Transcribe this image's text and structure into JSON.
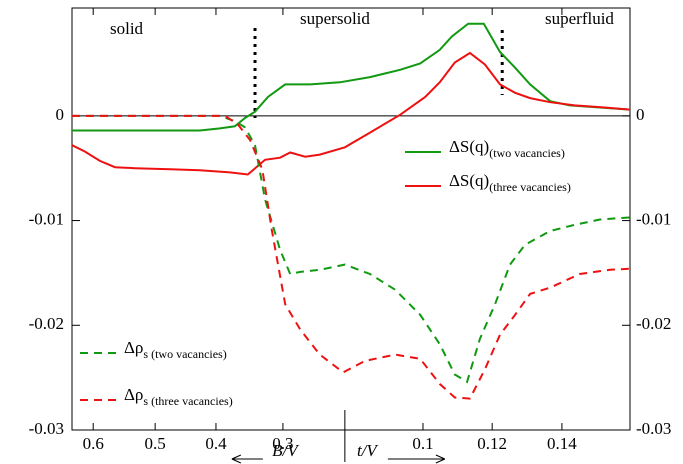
{
  "chart_data": {
    "type": "line",
    "xlim": [
      0,
      100
    ],
    "xticks": [
      {
        "value": 3.8,
        "label": "0.6"
      },
      {
        "value": 14.9,
        "label": "0.5"
      },
      {
        "value": 25.8,
        "label": "0.4"
      },
      {
        "value": 37.8,
        "label": "0.3"
      },
      {
        "value": 62.9,
        "label": "0.1"
      },
      {
        "value": 75.3,
        "label": "0.12"
      },
      {
        "value": 87.8,
        "label": "0.14"
      }
    ],
    "ylim": [
      -0.03,
      0.0103
    ],
    "yticks": [
      -0.03,
      -0.02,
      -0.01,
      0
    ],
    "x_label_left": "B/V",
    "x_label_right": "t/V",
    "x_divider": 48.9,
    "regions": [
      "solid",
      "supersolid",
      "superfluid"
    ],
    "phase_boundaries": [
      32.8,
      77.1
    ],
    "series": [
      {
        "name": "ΔS(q)",
        "name_sub": "(two vacancies)",
        "color": "#119911",
        "dash": false,
        "x": [
          0,
          5.0,
          14.0,
          22.9,
          26.5,
          29.2,
          31.0,
          32.8,
          35.1,
          38.2,
          42.7,
          48.0,
          53.4,
          58.8,
          62.4,
          65.9,
          68.1,
          71.0,
          73.8,
          76.7,
          79.4,
          82.1,
          85.7,
          89.2,
          94.6,
          100
        ],
        "values": [
          -0.0014,
          -0.0014,
          -0.0014,
          -0.0014,
          -0.0012,
          -0.001,
          -0.0002,
          0.0004,
          0.0018,
          0.003,
          0.003,
          0.0032,
          0.0037,
          0.0044,
          0.005,
          0.0063,
          0.0076,
          0.0088,
          0.0088,
          0.0061,
          0.0046,
          0.003,
          0.0014,
          0.001,
          0.0008,
          0.0006
        ]
      },
      {
        "name": "ΔS(q)",
        "name_sub": "(three vacancies)",
        "color": "#ee1111",
        "dash": false,
        "x": [
          0,
          2.3,
          5.0,
          7.7,
          11.3,
          17.6,
          22.9,
          28.3,
          31.5,
          34.6,
          37.3,
          39.1,
          41.8,
          44.4,
          48.9,
          53.4,
          58.8,
          63.3,
          65.9,
          68.6,
          71.3,
          74.0,
          76.7,
          79.4,
          82.1,
          85.7,
          90.1,
          95.5,
          100
        ],
        "values": [
          -0.0028,
          -0.0034,
          -0.0043,
          -0.0049,
          -0.005,
          -0.0051,
          -0.0052,
          -0.0054,
          -0.0056,
          -0.0042,
          -0.004,
          -0.0035,
          -0.0039,
          -0.0037,
          -0.003,
          -0.0016,
          0.0001,
          0.0018,
          0.0032,
          0.0051,
          0.006,
          0.0049,
          0.003,
          0.0022,
          0.0017,
          0.0013,
          0.001,
          0.0008,
          0.0006
        ]
      },
      {
        "name": "Δρ",
        "name_sub": "s (two vacancies)",
        "color": "#119911",
        "dash": true,
        "x": [
          0,
          14.0,
          26.5,
          29.2,
          31.0,
          32.8,
          34.6,
          37.3,
          39.1,
          40.9,
          44.4,
          48.9,
          53.4,
          57.9,
          62.4,
          65.9,
          68.6,
          70.8,
          73.1,
          75.8,
          78.5,
          81.2,
          85.7,
          90.1,
          94.6,
          100
        ],
        "values": [
          0,
          0,
          0,
          -0.0005,
          -0.0011,
          -0.0028,
          -0.008,
          -0.0128,
          -0.0151,
          -0.0149,
          -0.0147,
          -0.0142,
          -0.0151,
          -0.0166,
          -0.019,
          -0.0218,
          -0.0247,
          -0.0254,
          -0.0213,
          -0.018,
          -0.0142,
          -0.0123,
          -0.011,
          -0.0104,
          -0.0099,
          -0.0097
        ]
      },
      {
        "name": "Δρ",
        "name_sub": "s (three vacancies)",
        "color": "#ee1111",
        "dash": true,
        "x": [
          0,
          14.0,
          27.4,
          29.7,
          31.9,
          34.1,
          35.8,
          38.2,
          40.9,
          44.4,
          48.6,
          52.5,
          57.9,
          62.4,
          65.9,
          68.6,
          71.3,
          74.0,
          76.7,
          79.4,
          82.1,
          85.7,
          91.0,
          96.4,
          100
        ],
        "values": [
          0,
          0,
          0,
          -0.0008,
          -0.0023,
          -0.0051,
          -0.0109,
          -0.018,
          -0.0204,
          -0.0228,
          -0.0245,
          -0.0234,
          -0.0228,
          -0.0232,
          -0.0256,
          -0.0269,
          -0.027,
          -0.0242,
          -0.0209,
          -0.019,
          -0.017,
          -0.0164,
          -0.0151,
          -0.0147,
          -0.0146
        ]
      }
    ]
  }
}
